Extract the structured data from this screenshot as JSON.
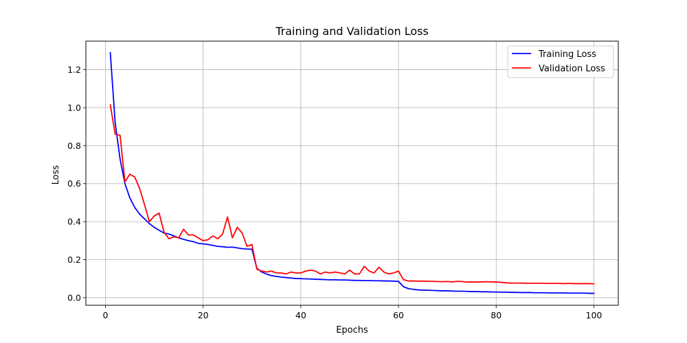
{
  "chart_data": {
    "type": "line",
    "title": "Training and Validation Loss",
    "xlabel": "Epochs",
    "ylabel": "Loss",
    "xlim": [
      -4,
      105
    ],
    "ylim": [
      -0.04,
      1.35
    ],
    "xticks": [
      0,
      20,
      40,
      60,
      80,
      100
    ],
    "yticks": [
      0.0,
      0.2,
      0.4,
      0.6,
      0.8,
      1.0,
      1.2
    ],
    "grid": true,
    "legend_position": "top-right",
    "x": [
      1,
      2,
      3,
      4,
      5,
      6,
      7,
      8,
      9,
      10,
      11,
      12,
      13,
      14,
      15,
      16,
      17,
      18,
      19,
      20,
      21,
      22,
      23,
      24,
      25,
      26,
      27,
      28,
      29,
      30,
      31,
      32,
      33,
      34,
      35,
      36,
      37,
      38,
      39,
      40,
      41,
      42,
      43,
      44,
      45,
      46,
      47,
      48,
      49,
      50,
      51,
      52,
      53,
      54,
      55,
      56,
      57,
      58,
      59,
      60,
      61,
      62,
      63,
      64,
      65,
      66,
      67,
      68,
      69,
      70,
      71,
      72,
      73,
      74,
      75,
      76,
      77,
      78,
      79,
      80,
      81,
      82,
      83,
      84,
      85,
      86,
      87,
      88,
      89,
      90,
      91,
      92,
      93,
      94,
      95,
      96,
      97,
      98,
      99,
      100
    ],
    "series": [
      {
        "name": "Training Loss",
        "color": "#0000ff",
        "values": [
          1.29,
          0.92,
          0.73,
          0.6,
          0.525,
          0.475,
          0.44,
          0.415,
          0.39,
          0.37,
          0.355,
          0.34,
          0.335,
          0.325,
          0.315,
          0.307,
          0.3,
          0.295,
          0.286,
          0.283,
          0.28,
          0.275,
          0.27,
          0.268,
          0.265,
          0.266,
          0.262,
          0.258,
          0.256,
          0.255,
          0.155,
          0.135,
          0.124,
          0.116,
          0.112,
          0.108,
          0.106,
          0.103,
          0.101,
          0.1,
          0.099,
          0.098,
          0.097,
          0.096,
          0.095,
          0.094,
          0.094,
          0.093,
          0.093,
          0.092,
          0.091,
          0.091,
          0.09,
          0.09,
          0.089,
          0.089,
          0.088,
          0.088,
          0.087,
          0.086,
          0.058,
          0.048,
          0.044,
          0.041,
          0.04,
          0.039,
          0.038,
          0.037,
          0.036,
          0.036,
          0.035,
          0.034,
          0.034,
          0.033,
          0.032,
          0.032,
          0.031,
          0.031,
          0.03,
          0.03,
          0.029,
          0.029,
          0.028,
          0.028,
          0.027,
          0.027,
          0.027,
          0.026,
          0.026,
          0.026,
          0.025,
          0.025,
          0.025,
          0.025,
          0.024,
          0.024,
          0.024,
          0.024,
          0.023,
          0.023
        ]
      },
      {
        "name": "Validation Loss",
        "color": "#ff0000",
        "values": [
          1.015,
          0.86,
          0.855,
          0.61,
          0.65,
          0.635,
          0.575,
          0.49,
          0.4,
          0.43,
          0.445,
          0.345,
          0.31,
          0.32,
          0.315,
          0.36,
          0.33,
          0.33,
          0.315,
          0.3,
          0.305,
          0.325,
          0.31,
          0.335,
          0.425,
          0.315,
          0.37,
          0.34,
          0.27,
          0.28,
          0.15,
          0.14,
          0.135,
          0.14,
          0.13,
          0.13,
          0.125,
          0.135,
          0.13,
          0.13,
          0.14,
          0.145,
          0.14,
          0.125,
          0.135,
          0.13,
          0.135,
          0.13,
          0.125,
          0.145,
          0.125,
          0.125,
          0.165,
          0.14,
          0.13,
          0.16,
          0.135,
          0.125,
          0.13,
          0.14,
          0.095,
          0.088,
          0.088,
          0.087,
          0.087,
          0.086,
          0.086,
          0.085,
          0.084,
          0.085,
          0.083,
          0.086,
          0.085,
          0.082,
          0.083,
          0.082,
          0.083,
          0.084,
          0.083,
          0.082,
          0.081,
          0.078,
          0.077,
          0.077,
          0.077,
          0.076,
          0.076,
          0.076,
          0.076,
          0.075,
          0.075,
          0.075,
          0.075,
          0.074,
          0.075,
          0.074,
          0.074,
          0.074,
          0.074,
          0.073
        ]
      }
    ]
  }
}
